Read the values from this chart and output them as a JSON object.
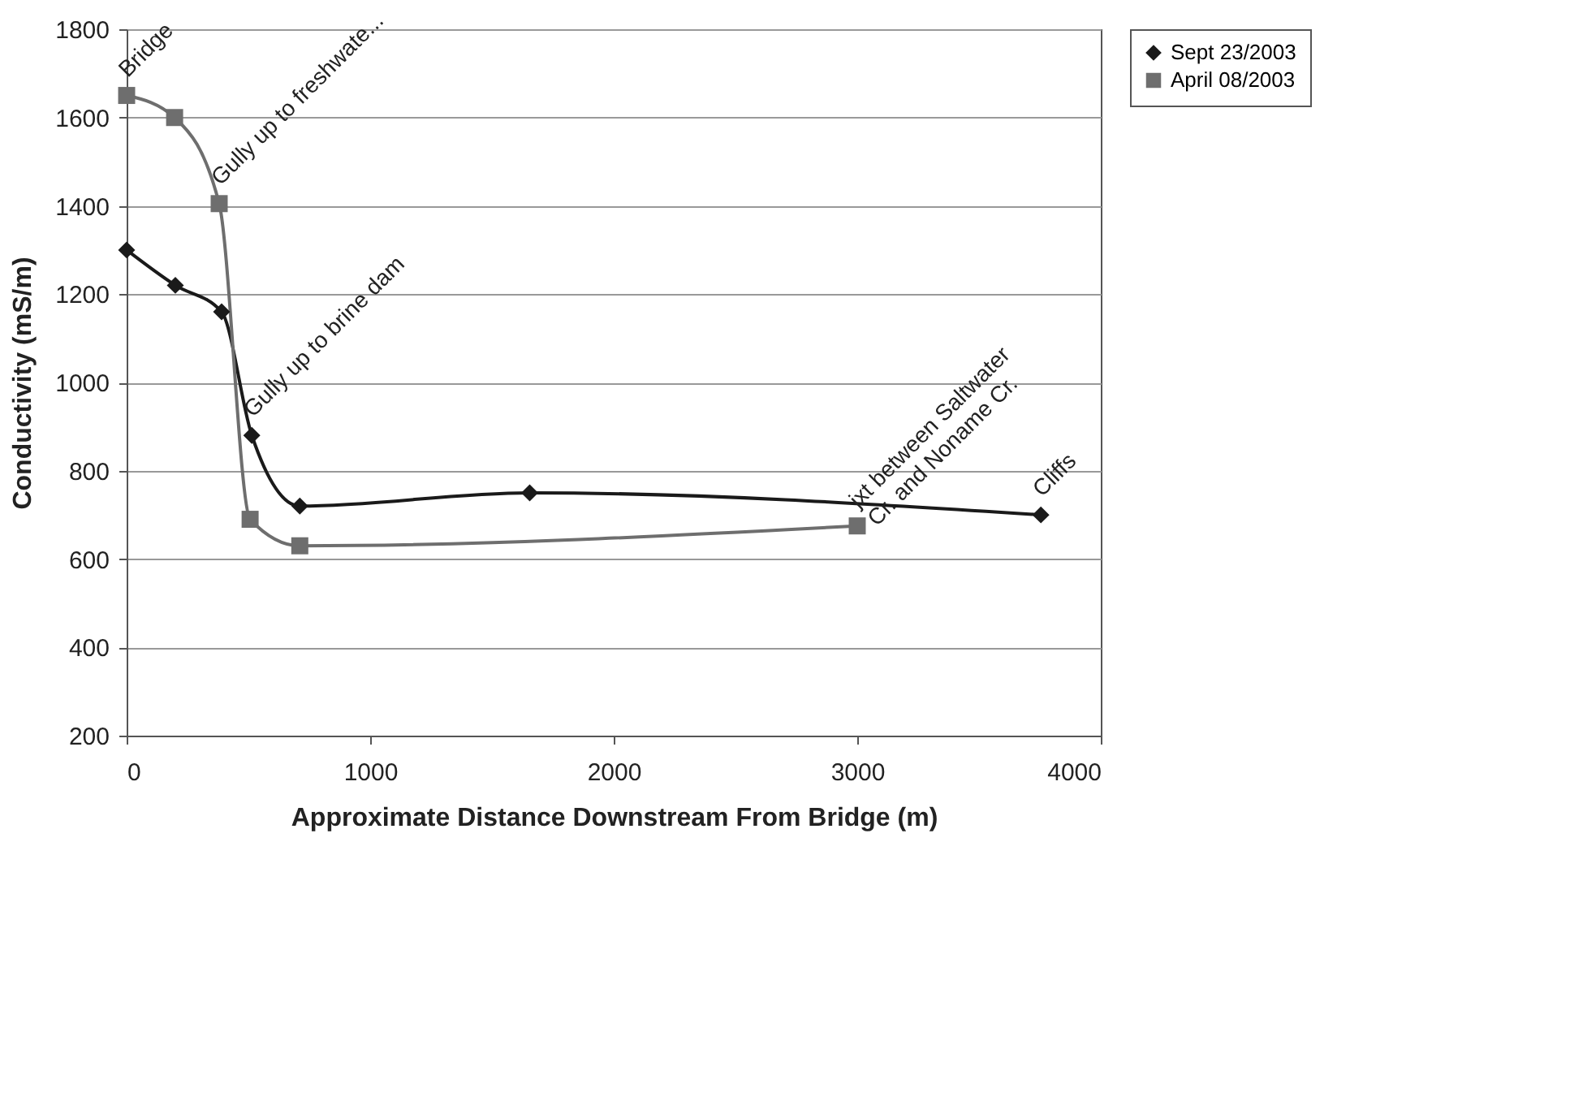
{
  "chart_data": {
    "type": "line",
    "xlabel": "Approximate Distance Downstream From Bridge (m)",
    "ylabel": "Conductivity (mS/m)",
    "xlim": [
      0,
      4000
    ],
    "xticks": [
      0,
      1000,
      2000,
      3000,
      4000
    ],
    "ylim": [
      200,
      1800
    ],
    "yticks": [
      200,
      400,
      600,
      800,
      1000,
      1200,
      1400,
      1600,
      1800
    ],
    "grid": "y",
    "legend": "top right",
    "series": [
      {
        "name": "Sept 23/2003",
        "color": "#1a1a1a",
        "marker": "diamond",
        "x": [
          0,
          200,
          390,
          514,
          711,
          1655,
          3754
        ],
        "values": [
          1300,
          1220,
          1160,
          880,
          720,
          750,
          700
        ]
      },
      {
        "name": "April 08/2003",
        "color": "#6e6e6e",
        "marker": "square",
        "x": [
          0,
          197,
          380,
          507,
          711,
          3000
        ],
        "values": [
          1650,
          1600,
          1405,
          690,
          630,
          675
        ]
      }
    ],
    "annotations": [
      {
        "text": "Bridge",
        "x": 0,
        "y": 1650
      },
      {
        "text": "Gully up to freshwate...",
        "x": 380,
        "y": 1405
      },
      {
        "text": "Gully up to brine dam",
        "x": 514,
        "y": 880
      },
      {
        "text": "jxt between Saltwater\nCr. and Noname Cr.",
        "x": 3000,
        "y": 675
      },
      {
        "text": "Cliffs",
        "x": 3754,
        "y": 700
      }
    ]
  }
}
